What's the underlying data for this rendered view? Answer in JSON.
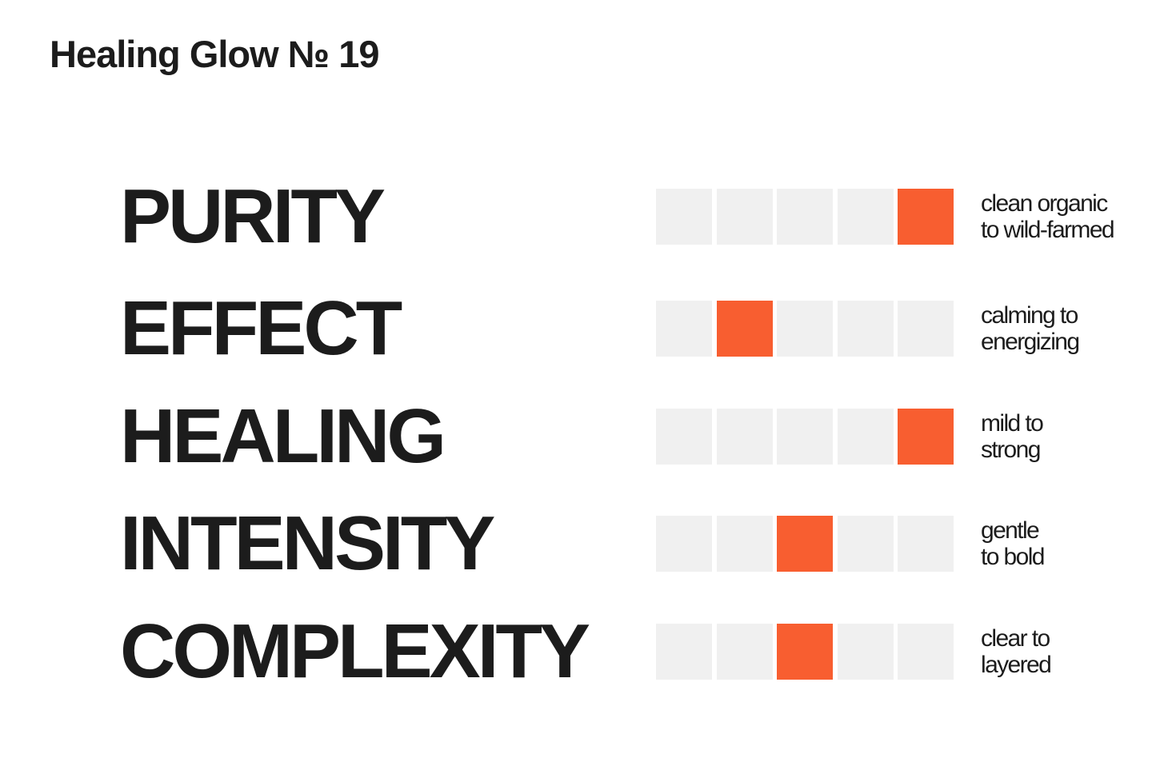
{
  "title": "Healing Glow № 19",
  "colors": {
    "active": "#f85e30",
    "inactive": "#f0f0f0",
    "text": "#1c1c1c"
  },
  "scale_steps": 5,
  "rows": [
    {
      "label": "PURITY",
      "value": 5,
      "desc_line1": "clean organic",
      "desc_line2": "to wild-farmed"
    },
    {
      "label": "EFFECT",
      "value": 2,
      "desc_line1": "calming to",
      "desc_line2": "energizing"
    },
    {
      "label": "HEALING",
      "value": 5,
      "desc_line1": "mild to",
      "desc_line2": "strong"
    },
    {
      "label": "INTENSITY",
      "value": 3,
      "desc_line1": "gentle",
      "desc_line2": "to bold"
    },
    {
      "label": "COMPLEXITY",
      "value": 3,
      "desc_line1": "clear to",
      "desc_line2": "layered"
    }
  ]
}
